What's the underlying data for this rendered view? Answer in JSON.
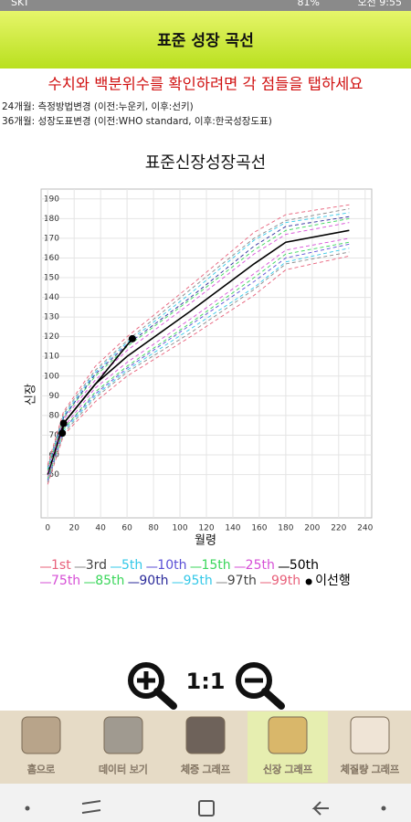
{
  "status_bar": {
    "carrier": "SKT",
    "battery": "81%",
    "time": "오전 9:55"
  },
  "header": {
    "title": "표준 성장 곡선"
  },
  "notice": "수치와 백분위수를 확인하려면 각 점들을 탭하세요",
  "notes": [
    "24개월: 측정방법변경 (이전:누운키, 이후:선키)",
    "36개월: 성장도표변경 (이전:WHO standard, 이후:한국성장도표)"
  ],
  "chart_data": {
    "type": "line",
    "title": "표준신장성장곡선",
    "x_label": "월령",
    "y_label": "신장",
    "x": [
      0,
      12,
      36,
      60,
      108,
      156,
      180,
      228
    ],
    "xlim": [
      -5,
      245
    ],
    "xticks": [
      0,
      20,
      40,
      60,
      80,
      100,
      120,
      140,
      160,
      180,
      200,
      220,
      240
    ],
    "ylim": [
      28,
      195
    ],
    "yticks": [
      50,
      60,
      70,
      80,
      90,
      100,
      110,
      120,
      130,
      140,
      150,
      160,
      170,
      180,
      190
    ],
    "grid": true,
    "series": [
      {
        "name": "1st",
        "color": "#e8607a",
        "dashed": true,
        "values": [
          45,
          70,
          87,
          100,
          120,
          141,
          154,
          161
        ]
      },
      {
        "name": "3rd",
        "color": "#888888",
        "dashed": true,
        "values": [
          46,
          71,
          89,
          102,
          122,
          144,
          157,
          163
        ]
      },
      {
        "name": "5th",
        "color": "#33c8e8",
        "dashed": true,
        "values": [
          47,
          72,
          90,
          103,
          124,
          145,
          158,
          165
        ]
      },
      {
        "name": "10th",
        "color": "#5a4fd6",
        "dashed": true,
        "values": [
          47,
          73,
          91,
          104,
          126,
          148,
          160,
          167
        ]
      },
      {
        "name": "15th",
        "color": "#3ad65a",
        "dashed": true,
        "values": [
          48,
          73,
          92,
          105,
          127,
          150,
          162,
          168
        ]
      },
      {
        "name": "25th",
        "color": "#d64fd6",
        "dashed": true,
        "values": [
          49,
          74,
          94,
          107,
          129,
          152,
          164,
          170
        ]
      },
      {
        "name": "50th",
        "color": "#000000",
        "dashed": false,
        "values": [
          50,
          76,
          96,
          110,
          133,
          157,
          168,
          174
        ]
      },
      {
        "name": "75th",
        "color": "#d64fd6",
        "dashed": true,
        "values": [
          51,
          78,
          98,
          113,
          137,
          162,
          172,
          178
        ]
      },
      {
        "name": "85th",
        "color": "#3ad65a",
        "dashed": true,
        "values": [
          52,
          79,
          100,
          115,
          139,
          164,
          174,
          180
        ]
      },
      {
        "name": "90th",
        "color": "#2a2a9a",
        "dashed": true,
        "values": [
          53,
          79,
          101,
          116,
          140,
          166,
          176,
          181
        ]
      },
      {
        "name": "95th",
        "color": "#33c8e8",
        "dashed": true,
        "values": [
          53,
          80,
          102,
          117,
          142,
          169,
          178,
          183
        ]
      },
      {
        "name": "97th",
        "color": "#888888",
        "dashed": true,
        "values": [
          54,
          81,
          103,
          118,
          144,
          170,
          179,
          185
        ]
      },
      {
        "name": "99th",
        "color": "#e8607a",
        "dashed": true,
        "values": [
          55,
          82,
          105,
          120,
          146,
          173,
          182,
          187
        ]
      },
      {
        "name": "이선행",
        "color": "#000000",
        "marker": true,
        "x": [
          11,
          12,
          64
        ],
        "values": [
          71,
          76,
          119
        ]
      }
    ]
  },
  "zoom": {
    "reset": "1:1"
  },
  "tabs": [
    {
      "label": "홈으로",
      "selected": false
    },
    {
      "label": "데이터 보기",
      "selected": false
    },
    {
      "label": "체중 그래프",
      "selected": false
    },
    {
      "label": "신장 그래프",
      "selected": true
    },
    {
      "label": "체질량 그래프",
      "selected": false
    }
  ]
}
